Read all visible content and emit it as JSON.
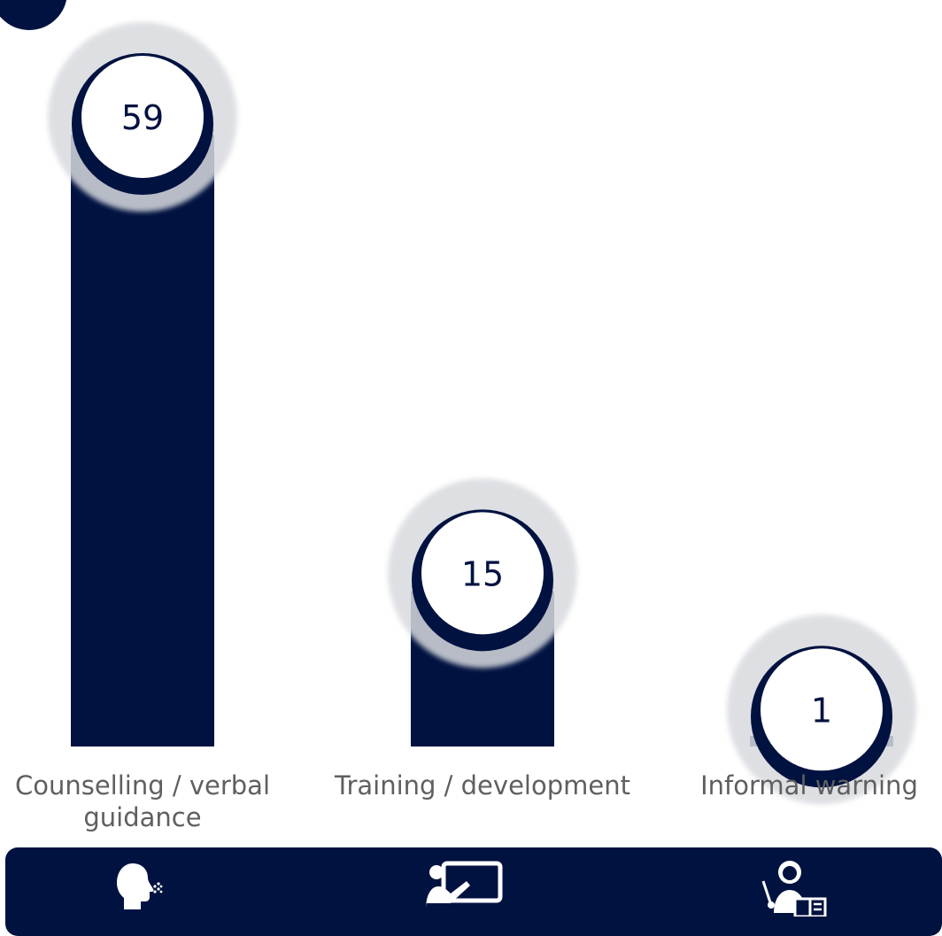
{
  "chart_data": {
    "type": "bar",
    "categories": [
      "Counselling / verbal guidance",
      "Training / development",
      "Informal warning"
    ],
    "values": [
      59,
      15,
      1
    ],
    "data_labels": [
      "59",
      "15",
      "1"
    ],
    "title": "",
    "xlabel": "",
    "ylabel": "",
    "ylim": [
      0,
      65
    ],
    "grid": false,
    "legend": "none"
  },
  "footer": {
    "icons": [
      "speaking-head-icon",
      "presentation-board-icon",
      "teacher-with-book-icon"
    ]
  },
  "colors": {
    "bar": "#001240",
    "bubble_halo": "#d8dadf",
    "bubble_fill": "#ffffff",
    "label_text": "#5f5f5f",
    "value_text": "#001240",
    "footer": "#001240"
  }
}
